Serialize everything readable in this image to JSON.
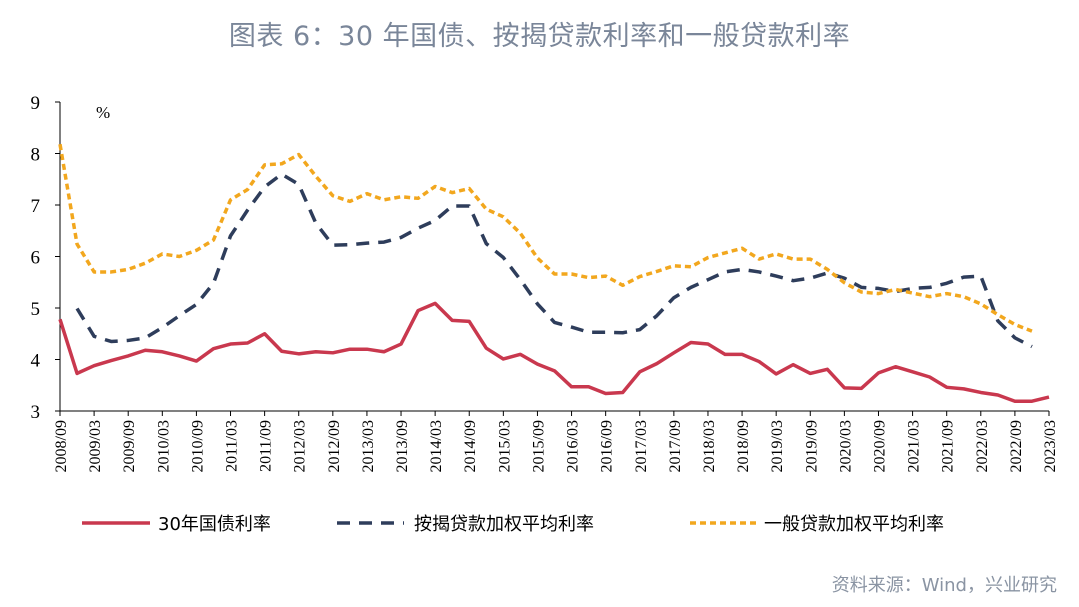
{
  "title": "图表 6：30 年国债、按揭贷款利率和一般贷款利率",
  "source": "资料来源：Wind，兴业研究",
  "chart_data": {
    "type": "line",
    "unit": "%",
    "ylim": [
      3,
      9
    ],
    "yticks": [
      3,
      4,
      5,
      6,
      7,
      8,
      9
    ],
    "legend_position": "bottom",
    "grid": false,
    "x": [
      "2008/09",
      "2008/12",
      "2009/03",
      "2009/06",
      "2009/09",
      "2009/12",
      "2010/03",
      "2010/06",
      "2010/09",
      "2010/12",
      "2011/03",
      "2011/06",
      "2011/09",
      "2011/12",
      "2012/03",
      "2012/06",
      "2012/09",
      "2012/12",
      "2013/03",
      "2013/06",
      "2013/09",
      "2013/12",
      "2014/03",
      "2014/06",
      "2014/09",
      "2014/12",
      "2015/03",
      "2015/06",
      "2015/09",
      "2015/12",
      "2016/03",
      "2016/06",
      "2016/09",
      "2016/12",
      "2017/03",
      "2017/06",
      "2017/09",
      "2017/12",
      "2018/03",
      "2018/06",
      "2018/09",
      "2018/12",
      "2019/03",
      "2019/06",
      "2019/09",
      "2019/12",
      "2020/03",
      "2020/06",
      "2020/09",
      "2020/12",
      "2021/03",
      "2021/06",
      "2021/09",
      "2021/12",
      "2022/03",
      "2022/06",
      "2022/09",
      "2022/12",
      "2023/03"
    ],
    "x_tick_labels": [
      "2008/09",
      "2009/03",
      "2009/09",
      "2010/03",
      "2010/09",
      "2011/03",
      "2011/09",
      "2012/03",
      "2012/09",
      "2013/03",
      "2013/09",
      "2014/03",
      "2014/09",
      "2015/03",
      "2015/09",
      "2016/03",
      "2016/09",
      "2017/03",
      "2017/09",
      "2018/03",
      "2018/09",
      "2019/03",
      "2019/09",
      "2020/03",
      "2020/09",
      "2021/03",
      "2021/09",
      "2022/03",
      "2022/09",
      "2023/03"
    ],
    "series": [
      {
        "name": "30年国债利率",
        "color": "#c9384e",
        "dash": "solid",
        "values": [
          4.78,
          3.73,
          3.88,
          3.98,
          4.07,
          4.18,
          4.15,
          4.07,
          3.97,
          4.21,
          4.3,
          4.32,
          4.5,
          4.16,
          4.11,
          4.15,
          4.13,
          4.2,
          4.2,
          4.15,
          4.3,
          4.95,
          5.09,
          4.76,
          4.74,
          4.22,
          4.01,
          4.1,
          3.91,
          3.78,
          3.47,
          3.47,
          3.34,
          3.36,
          3.76,
          3.92,
          4.13,
          4.33,
          4.3,
          4.1,
          4.1,
          3.96,
          3.72,
          3.9,
          3.73,
          3.81,
          3.45,
          3.44,
          3.74,
          3.86,
          3.76,
          3.66,
          3.46,
          3.43,
          3.36,
          3.31,
          3.19,
          3.19,
          3.27
        ]
      },
      {
        "name": "按揭贷款加权平均利率",
        "color": "#2e3d5b",
        "dash": "dash",
        "values": [
          null,
          4.99,
          4.45,
          4.35,
          4.37,
          4.42,
          4.62,
          4.85,
          5.07,
          5.48,
          6.4,
          6.9,
          7.35,
          7.6,
          7.4,
          6.65,
          6.22,
          6.23,
          6.26,
          6.28,
          6.37,
          6.55,
          6.7,
          6.98,
          6.98,
          6.25,
          5.98,
          5.55,
          5.08,
          4.72,
          4.63,
          4.53,
          4.53,
          4.52,
          4.58,
          4.85,
          5.2,
          5.4,
          5.55,
          5.7,
          5.75,
          5.7,
          5.62,
          5.53,
          5.58,
          5.68,
          5.58,
          5.4,
          5.38,
          5.32,
          5.38,
          5.4,
          5.48,
          5.6,
          5.62,
          4.75,
          4.42,
          4.25,
          null
        ]
      },
      {
        "name": "一般贷款加权平均利率",
        "color": "#f2a71e",
        "dash": "short-dash",
        "values": [
          8.18,
          6.24,
          5.7,
          5.7,
          5.75,
          5.87,
          6.05,
          6.0,
          6.12,
          6.32,
          7.1,
          7.3,
          7.78,
          7.8,
          7.98,
          7.56,
          7.18,
          7.07,
          7.22,
          7.1,
          7.16,
          7.13,
          7.36,
          7.24,
          7.32,
          6.92,
          6.77,
          6.45,
          5.97,
          5.66,
          5.66,
          5.59,
          5.62,
          5.44,
          5.61,
          5.71,
          5.82,
          5.8,
          5.98,
          6.07,
          6.16,
          5.95,
          6.05,
          5.95,
          5.95,
          5.75,
          5.49,
          5.31,
          5.28,
          5.36,
          5.29,
          5.22,
          5.28,
          5.22,
          5.08,
          4.87,
          4.68,
          4.55,
          null
        ]
      }
    ]
  }
}
